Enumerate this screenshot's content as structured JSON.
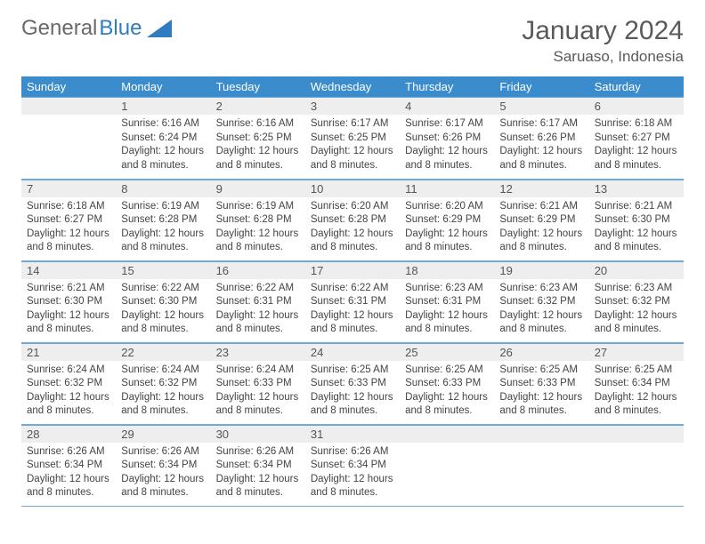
{
  "logo": {
    "text1": "General",
    "text2": "Blue",
    "accent_color": "#2f7dc0",
    "gray_color": "#6a6a6a"
  },
  "title": "January 2024",
  "location": "Saruaso, Indonesia",
  "colors": {
    "header_bg": "#3b8ccc",
    "header_fg": "#ffffff",
    "daynum_bg": "#eeeeee",
    "rule": "#6fa9d6",
    "text": "#444444"
  },
  "day_headers": [
    "Sunday",
    "Monday",
    "Tuesday",
    "Wednesday",
    "Thursday",
    "Friday",
    "Saturday"
  ],
  "weeks": [
    [
      null,
      {
        "n": "1",
        "sunrise": "Sunrise: 6:16 AM",
        "sunset": "Sunset: 6:24 PM",
        "d1": "Daylight: 12 hours",
        "d2": "and 8 minutes."
      },
      {
        "n": "2",
        "sunrise": "Sunrise: 6:16 AM",
        "sunset": "Sunset: 6:25 PM",
        "d1": "Daylight: 12 hours",
        "d2": "and 8 minutes."
      },
      {
        "n": "3",
        "sunrise": "Sunrise: 6:17 AM",
        "sunset": "Sunset: 6:25 PM",
        "d1": "Daylight: 12 hours",
        "d2": "and 8 minutes."
      },
      {
        "n": "4",
        "sunrise": "Sunrise: 6:17 AM",
        "sunset": "Sunset: 6:26 PM",
        "d1": "Daylight: 12 hours",
        "d2": "and 8 minutes."
      },
      {
        "n": "5",
        "sunrise": "Sunrise: 6:17 AM",
        "sunset": "Sunset: 6:26 PM",
        "d1": "Daylight: 12 hours",
        "d2": "and 8 minutes."
      },
      {
        "n": "6",
        "sunrise": "Sunrise: 6:18 AM",
        "sunset": "Sunset: 6:27 PM",
        "d1": "Daylight: 12 hours",
        "d2": "and 8 minutes."
      }
    ],
    [
      {
        "n": "7",
        "sunrise": "Sunrise: 6:18 AM",
        "sunset": "Sunset: 6:27 PM",
        "d1": "Daylight: 12 hours",
        "d2": "and 8 minutes."
      },
      {
        "n": "8",
        "sunrise": "Sunrise: 6:19 AM",
        "sunset": "Sunset: 6:28 PM",
        "d1": "Daylight: 12 hours",
        "d2": "and 8 minutes."
      },
      {
        "n": "9",
        "sunrise": "Sunrise: 6:19 AM",
        "sunset": "Sunset: 6:28 PM",
        "d1": "Daylight: 12 hours",
        "d2": "and 8 minutes."
      },
      {
        "n": "10",
        "sunrise": "Sunrise: 6:20 AM",
        "sunset": "Sunset: 6:28 PM",
        "d1": "Daylight: 12 hours",
        "d2": "and 8 minutes."
      },
      {
        "n": "11",
        "sunrise": "Sunrise: 6:20 AM",
        "sunset": "Sunset: 6:29 PM",
        "d1": "Daylight: 12 hours",
        "d2": "and 8 minutes."
      },
      {
        "n": "12",
        "sunrise": "Sunrise: 6:21 AM",
        "sunset": "Sunset: 6:29 PM",
        "d1": "Daylight: 12 hours",
        "d2": "and 8 minutes."
      },
      {
        "n": "13",
        "sunrise": "Sunrise: 6:21 AM",
        "sunset": "Sunset: 6:30 PM",
        "d1": "Daylight: 12 hours",
        "d2": "and 8 minutes."
      }
    ],
    [
      {
        "n": "14",
        "sunrise": "Sunrise: 6:21 AM",
        "sunset": "Sunset: 6:30 PM",
        "d1": "Daylight: 12 hours",
        "d2": "and 8 minutes."
      },
      {
        "n": "15",
        "sunrise": "Sunrise: 6:22 AM",
        "sunset": "Sunset: 6:30 PM",
        "d1": "Daylight: 12 hours",
        "d2": "and 8 minutes."
      },
      {
        "n": "16",
        "sunrise": "Sunrise: 6:22 AM",
        "sunset": "Sunset: 6:31 PM",
        "d1": "Daylight: 12 hours",
        "d2": "and 8 minutes."
      },
      {
        "n": "17",
        "sunrise": "Sunrise: 6:22 AM",
        "sunset": "Sunset: 6:31 PM",
        "d1": "Daylight: 12 hours",
        "d2": "and 8 minutes."
      },
      {
        "n": "18",
        "sunrise": "Sunrise: 6:23 AM",
        "sunset": "Sunset: 6:31 PM",
        "d1": "Daylight: 12 hours",
        "d2": "and 8 minutes."
      },
      {
        "n": "19",
        "sunrise": "Sunrise: 6:23 AM",
        "sunset": "Sunset: 6:32 PM",
        "d1": "Daylight: 12 hours",
        "d2": "and 8 minutes."
      },
      {
        "n": "20",
        "sunrise": "Sunrise: 6:23 AM",
        "sunset": "Sunset: 6:32 PM",
        "d1": "Daylight: 12 hours",
        "d2": "and 8 minutes."
      }
    ],
    [
      {
        "n": "21",
        "sunrise": "Sunrise: 6:24 AM",
        "sunset": "Sunset: 6:32 PM",
        "d1": "Daylight: 12 hours",
        "d2": "and 8 minutes."
      },
      {
        "n": "22",
        "sunrise": "Sunrise: 6:24 AM",
        "sunset": "Sunset: 6:32 PM",
        "d1": "Daylight: 12 hours",
        "d2": "and 8 minutes."
      },
      {
        "n": "23",
        "sunrise": "Sunrise: 6:24 AM",
        "sunset": "Sunset: 6:33 PM",
        "d1": "Daylight: 12 hours",
        "d2": "and 8 minutes."
      },
      {
        "n": "24",
        "sunrise": "Sunrise: 6:25 AM",
        "sunset": "Sunset: 6:33 PM",
        "d1": "Daylight: 12 hours",
        "d2": "and 8 minutes."
      },
      {
        "n": "25",
        "sunrise": "Sunrise: 6:25 AM",
        "sunset": "Sunset: 6:33 PM",
        "d1": "Daylight: 12 hours",
        "d2": "and 8 minutes."
      },
      {
        "n": "26",
        "sunrise": "Sunrise: 6:25 AM",
        "sunset": "Sunset: 6:33 PM",
        "d1": "Daylight: 12 hours",
        "d2": "and 8 minutes."
      },
      {
        "n": "27",
        "sunrise": "Sunrise: 6:25 AM",
        "sunset": "Sunset: 6:34 PM",
        "d1": "Daylight: 12 hours",
        "d2": "and 8 minutes."
      }
    ],
    [
      {
        "n": "28",
        "sunrise": "Sunrise: 6:26 AM",
        "sunset": "Sunset: 6:34 PM",
        "d1": "Daylight: 12 hours",
        "d2": "and 8 minutes."
      },
      {
        "n": "29",
        "sunrise": "Sunrise: 6:26 AM",
        "sunset": "Sunset: 6:34 PM",
        "d1": "Daylight: 12 hours",
        "d2": "and 8 minutes."
      },
      {
        "n": "30",
        "sunrise": "Sunrise: 6:26 AM",
        "sunset": "Sunset: 6:34 PM",
        "d1": "Daylight: 12 hours",
        "d2": "and 8 minutes."
      },
      {
        "n": "31",
        "sunrise": "Sunrise: 6:26 AM",
        "sunset": "Sunset: 6:34 PM",
        "d1": "Daylight: 12 hours",
        "d2": "and 8 minutes."
      },
      null,
      null,
      null
    ]
  ]
}
